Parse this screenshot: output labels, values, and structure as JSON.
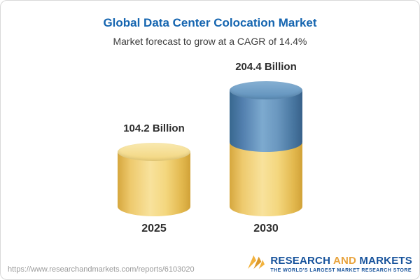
{
  "header": {
    "title": "Global Data Center Colocation Market",
    "subtitle": "Market forecast to grow at a CAGR of 14.4%"
  },
  "chart_data": {
    "type": "bar",
    "style": "3d-cylinder",
    "title": "Global Data Center Colocation Market",
    "subtitle": "Market forecast to grow at a CAGR of 14.4%",
    "unit": "Billion",
    "categories": [
      "2025",
      "2030"
    ],
    "values": [
      104.2,
      204.4
    ],
    "bars": [
      {
        "category": "2025",
        "label": "104.2 Billion",
        "total": 104.2,
        "segments": [
          {
            "value": 104.2,
            "color": "yellow"
          }
        ]
      },
      {
        "category": "2030",
        "label": "204.4 Billion",
        "total": 204.4,
        "segments": [
          {
            "value": 104.2,
            "color": "yellow"
          },
          {
            "value": 100.2,
            "color": "blue"
          }
        ]
      }
    ],
    "colors": {
      "yellow": "#F2D178",
      "blue": "#5988B4"
    },
    "legend": "none",
    "grid": false
  },
  "footer": {
    "url": "https://www.researchandmarkets.com/reports/6103020",
    "logo": {
      "word1": "RESEARCH",
      "word2": "AND",
      "word3": "MARKETS",
      "tagline": "THE WORLD'S LARGEST MARKET RESEARCH STORE"
    }
  }
}
